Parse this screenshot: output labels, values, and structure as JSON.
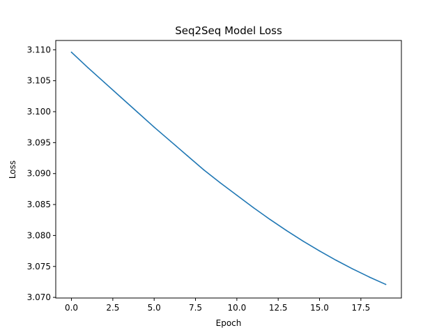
{
  "chart_data": {
    "type": "line",
    "title": "Seq2Seq Model Loss",
    "xlabel": "Epoch",
    "ylabel": "Loss",
    "xlim": [
      -0.95,
      19.95
    ],
    "ylim": [
      3.0699,
      3.1115
    ],
    "xticks": [
      0.0,
      2.5,
      5.0,
      7.5,
      10.0,
      12.5,
      15.0,
      17.5
    ],
    "xtick_labels": [
      "0.0",
      "2.5",
      "5.0",
      "7.5",
      "10.0",
      "12.5",
      "15.0",
      "17.5"
    ],
    "yticks": [
      3.07,
      3.075,
      3.08,
      3.085,
      3.09,
      3.095,
      3.1,
      3.105,
      3.11
    ],
    "ytick_labels": [
      "3.070",
      "3.075",
      "3.080",
      "3.085",
      "3.090",
      "3.095",
      "3.100",
      "3.105",
      "3.110"
    ],
    "grid": false,
    "series": [
      {
        "color": "#1f77b4",
        "x": [
          0,
          1,
          2,
          3,
          4,
          5,
          6,
          7,
          8,
          9,
          10,
          11,
          12,
          13,
          14,
          15,
          16,
          17,
          18,
          19
        ],
        "y": [
          3.1096,
          3.1071,
          3.1047,
          3.1023,
          3.0999,
          3.0975,
          3.0952,
          3.0929,
          3.0906,
          3.0885,
          3.0865,
          3.0845,
          3.0826,
          3.0808,
          3.0791,
          3.0775,
          3.076,
          3.0746,
          3.0733,
          3.0721
        ]
      }
    ]
  }
}
